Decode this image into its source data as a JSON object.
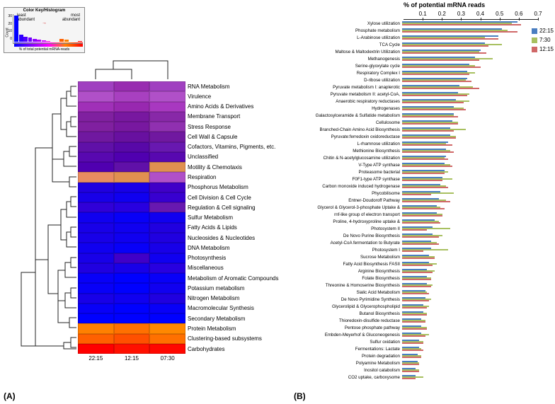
{
  "panelA": {
    "tag": "(A)",
    "inset": {
      "title": "Color Key/Histogram",
      "ylabel": "Count",
      "xlabel": "% of total potential mRNA-reads",
      "label_least": "least\nabundant",
      "label_most": "most\nabundant",
      "yticks": [
        "0",
        "10",
        "20",
        "30"
      ],
      "bars": [
        {
          "h": 100,
          "c": "#0000ff"
        },
        {
          "h": 28,
          "c": "#3000ff"
        },
        {
          "h": 20,
          "c": "#5000ff"
        },
        {
          "h": 15,
          "c": "#7000ff"
        },
        {
          "h": 10,
          "c": "#9000ff"
        },
        {
          "h": 7,
          "c": "#b000ff"
        },
        {
          "h": 5,
          "c": "#d000ff"
        },
        {
          "h": 3,
          "c": "#ff00e0"
        },
        {
          "h": 0,
          "c": "#ff00a0"
        },
        {
          "h": 0,
          "c": "#ff0060"
        },
        {
          "h": 12,
          "c": "#ff6000"
        },
        {
          "h": 8,
          "c": "#ff8000"
        },
        {
          "h": 0,
          "c": "#ffa000"
        },
        {
          "h": 0,
          "c": "#ffc000"
        },
        {
          "h": 4,
          "c": "#ff0000"
        }
      ],
      "gradient": [
        "#0000ff",
        "#8000ff",
        "#ff00ff",
        "#ff8000",
        "#ff0000"
      ]
    },
    "xlabels": [
      "22:15",
      "12:15",
      "07:30"
    ],
    "rows": [
      {
        "label": "RNA Metabolism",
        "cells": [
          "#a040c0",
          "#982db0",
          "#a040c0"
        ]
      },
      {
        "label": "Virulence",
        "cells": [
          "#b050c8",
          "#a840c0",
          "#b050c8"
        ]
      },
      {
        "label": "Amino Acids & Derivatives",
        "cells": [
          "#a030b8",
          "#9828b0",
          "#a838c0"
        ]
      },
      {
        "label": "Membrane Transport",
        "cells": [
          "#8020a0",
          "#7818a0",
          "#8828a8"
        ]
      },
      {
        "label": "Stress Response",
        "cells": [
          "#8020a0",
          "#7818a0",
          "#9030b0"
        ]
      },
      {
        "label": "Cell Wall & Capsule",
        "cells": [
          "#7018a0",
          "#6810a0",
          "#7018a0"
        ]
      },
      {
        "label": "Cofactors, Vitamins, Pigments, etc.",
        "cells": [
          "#6010a8",
          "#5808a8",
          "#6818b0"
        ]
      },
      {
        "label": "Unclassified",
        "cells": [
          "#5808b0",
          "#5000b0",
          "#5808b0"
        ]
      },
      {
        "label": "Motility & Chemotaxis",
        "cells": [
          "#5000b0",
          "#6010a8",
          "#e09050"
        ]
      },
      {
        "label": "Respiration",
        "cells": [
          "#e88c60",
          "#e09050",
          "#b050c8"
        ]
      },
      {
        "label": "Phosphorus Metabolism",
        "cells": [
          "#2000e0",
          "#1800e8",
          "#4000c8"
        ]
      },
      {
        "label": "Cell Division & Cell Cycle",
        "cells": [
          "#1800e8",
          "#1000f0",
          "#3800d0"
        ]
      },
      {
        "label": "Regulation & Cell signaling",
        "cells": [
          "#3000d8",
          "#2800e0",
          "#6818b0"
        ]
      },
      {
        "label": "Sulfur Metabolism",
        "cells": [
          "#1000f0",
          "#0800f8",
          "#1000f0"
        ]
      },
      {
        "label": "Fatty Acids & Lipids",
        "cells": [
          "#1800e8",
          "#1000f0",
          "#2000e0"
        ]
      },
      {
        "label": "Nucleosides & Nucleotides",
        "cells": [
          "#1800e8",
          "#1000f0",
          "#2000e0"
        ]
      },
      {
        "label": "DNA Metabolism",
        "cells": [
          "#1000f0",
          "#0800f8",
          "#1800e8"
        ]
      },
      {
        "label": "Photosynthesis",
        "cells": [
          "#1800e8",
          "#4000c8",
          "#1000f0"
        ]
      },
      {
        "label": "Miscellaneous",
        "cells": [
          "#2000e0",
          "#1800e8",
          "#2800e0"
        ]
      },
      {
        "label": "Metabolism of Aromatic Compounds",
        "cells": [
          "#0800f8",
          "#0000ff",
          "#0800f8"
        ]
      },
      {
        "label": "Potassium metabolism",
        "cells": [
          "#0800f8",
          "#0000ff",
          "#1000f0"
        ]
      },
      {
        "label": "Nitrogen Metabolism",
        "cells": [
          "#1800e8",
          "#1000f0",
          "#2000e0"
        ]
      },
      {
        "label": "Macromolecular Synthesis",
        "cells": [
          "#0800f8",
          "#0000ff",
          "#0800f8"
        ]
      },
      {
        "label": "Secondary Metabolism",
        "cells": [
          "#0000ff",
          "#0000ff",
          "#0000ff"
        ]
      },
      {
        "label": "Protein Metabolism",
        "cells": [
          "#ff8000",
          "#ff7000",
          "#ff8800"
        ]
      },
      {
        "label": "Clustering-based subsystems",
        "cells": [
          "#ff6000",
          "#ff5000",
          "#ff7000"
        ]
      },
      {
        "label": "Carbohydrates",
        "cells": [
          "#ff0000",
          "#ff1000",
          "#ff0800"
        ]
      }
    ]
  },
  "panelB": {
    "tag": "(B)",
    "title": "% of potential mRNA reads",
    "xticks": [
      0.1,
      0.2,
      0.3,
      0.4,
      0.5,
      0.6,
      0.7
    ],
    "xmax": 0.7,
    "legend": [
      {
        "label": "22:15",
        "color": "#4a7ec0"
      },
      {
        "label": "7:30",
        "color": "#a8c060"
      },
      {
        "label": "12:15",
        "color": "#d06868"
      }
    ],
    "series_colors": [
      "#4a7ec0",
      "#a8c060",
      "#d06868"
    ],
    "rows": [
      {
        "label": "Xylose utilization",
        "v": [
          0.6,
          0.57,
          0.62
        ]
      },
      {
        "label": "Phosphate metabolism",
        "v": [
          0.52,
          0.55,
          0.6
        ]
      },
      {
        "label": "L-Arabinose utilization",
        "v": [
          0.5,
          0.43,
          0.5
        ]
      },
      {
        "label": "TCA Cycle",
        "v": [
          0.43,
          0.52,
          0.45
        ]
      },
      {
        "label": "Maltose & Maltodextrin Utilization",
        "v": [
          0.41,
          0.4,
          0.44
        ]
      },
      {
        "label": "Methanogenesis",
        "v": [
          0.38,
          0.47,
          0.4
        ]
      },
      {
        "label": "Serine-glyoxylate cycle",
        "v": [
          0.35,
          0.38,
          0.41
        ]
      },
      {
        "label": "Respiratory Complex I",
        "v": [
          0.34,
          0.38,
          0.35
        ]
      },
      {
        "label": "D-ribose utilization",
        "v": [
          0.34,
          0.33,
          0.36
        ]
      },
      {
        "label": "Pyruvate metabolism I: anaplerotic",
        "v": [
          0.3,
          0.37,
          0.4
        ]
      },
      {
        "label": "Pyruvate metabolism II: acetyl-CoA,",
        "v": [
          0.29,
          0.35,
          0.34
        ]
      },
      {
        "label": "Anaerobic respiratory reductases",
        "v": [
          0.28,
          0.35,
          0.32
        ]
      },
      {
        "label": "Hydrogenases",
        "v": [
          0.27,
          0.32,
          0.33
        ]
      },
      {
        "label": "Galactosylceramide & Sulfatide metabolism",
        "v": [
          0.27,
          0.27,
          0.29
        ]
      },
      {
        "label": "Cellulosome",
        "v": [
          0.26,
          0.29,
          0.29
        ]
      },
      {
        "label": "Branched-Chain Amino Acid Biosynthesis",
        "v": [
          0.25,
          0.33,
          0.27
        ]
      },
      {
        "label": "Pyruvate:ferredoxin oxidoreductase",
        "v": [
          0.25,
          0.28,
          0.28
        ]
      },
      {
        "label": "L-rhamnose utilization",
        "v": [
          0.24,
          0.23,
          0.26
        ]
      },
      {
        "label": "Methionine Biosynthesis",
        "v": [
          0.23,
          0.25,
          0.27
        ]
      },
      {
        "label": "Chitin & N-acetylglucosamine utilization",
        "v": [
          0.23,
          0.22,
          0.24
        ]
      },
      {
        "label": "V-Type ATP synthase",
        "v": [
          0.22,
          0.25,
          0.26
        ]
      },
      {
        "label": "Proteasome bacterial",
        "v": [
          0.22,
          0.24,
          0.22
        ]
      },
      {
        "label": "F0F1-type ATP synthase",
        "v": [
          0.21,
          0.26,
          0.21
        ]
      },
      {
        "label": "Carbon monoxide induced hydrogenase",
        "v": [
          0.2,
          0.23,
          0.24
        ]
      },
      {
        "label": "Phycobilisome",
        "v": [
          0.2,
          0.27,
          0.15
        ]
      },
      {
        "label": "Entner-Doudoroff Pathway",
        "v": [
          0.19,
          0.23,
          0.25
        ]
      },
      {
        "label": "Glycerol & Glycerol-3-phosphate Uptake &",
        "v": [
          0.18,
          0.2,
          0.22
        ]
      },
      {
        "label": "rnf-like group of electron transport",
        "v": [
          0.18,
          0.21,
          0.21
        ]
      },
      {
        "label": "Proline, 4-hydroxyproline uptake &",
        "v": [
          0.17,
          0.19,
          0.2
        ]
      },
      {
        "label": "Photosystem II",
        "v": [
          0.16,
          0.25,
          0.13
        ]
      },
      {
        "label": "De Novo Purine Biosynthesis",
        "v": [
          0.16,
          0.21,
          0.19
        ]
      },
      {
        "label": "Acetyl-CoA fermentation to Butyrate",
        "v": [
          0.15,
          0.18,
          0.19
        ]
      },
      {
        "label": "Photosystem I",
        "v": [
          0.15,
          0.24,
          0.11
        ]
      },
      {
        "label": "Sucrose Metabolism",
        "v": [
          0.14,
          0.17,
          0.17
        ]
      },
      {
        "label": "Fatty Acid Biosynthesis FASII",
        "v": [
          0.14,
          0.18,
          0.16
        ]
      },
      {
        "label": "Arginine Biosynthesis",
        "v": [
          0.13,
          0.17,
          0.16
        ]
      },
      {
        "label": "Folate Biosynthesis",
        "v": [
          0.13,
          0.15,
          0.15
        ]
      },
      {
        "label": "Threonine & Homoserine Biosynthesis",
        "v": [
          0.13,
          0.16,
          0.15
        ]
      },
      {
        "label": "Sialic Acid Metabolism",
        "v": [
          0.12,
          0.13,
          0.14
        ]
      },
      {
        "label": "De Novo Pyrimidine Synthesis",
        "v": [
          0.12,
          0.15,
          0.14
        ]
      },
      {
        "label": "Glycerolipid & Glycerophospholipid",
        "v": [
          0.11,
          0.14,
          0.13
        ]
      },
      {
        "label": "Butanol Biosynthesis",
        "v": [
          0.11,
          0.13,
          0.13
        ]
      },
      {
        "label": "Thioredoxin-disulfide reductase",
        "v": [
          0.1,
          0.12,
          0.12
        ]
      },
      {
        "label": "Pentose phosphate pathway",
        "v": [
          0.1,
          0.13,
          0.13
        ]
      },
      {
        "label": "Embden-Meyerhof & Gluconeogenesis",
        "v": [
          0.1,
          0.14,
          0.12
        ]
      },
      {
        "label": "Sulfur oxidation",
        "v": [
          0.09,
          0.11,
          0.11
        ]
      },
      {
        "label": "Fermentations: Lactate",
        "v": [
          0.09,
          0.1,
          0.11
        ]
      },
      {
        "label": "Protein degradation",
        "v": [
          0.08,
          0.1,
          0.1
        ]
      },
      {
        "label": "Polyamine Metabolism",
        "v": [
          0.08,
          0.09,
          0.09
        ]
      },
      {
        "label": "Inositol catabolism",
        "v": [
          0.07,
          0.09,
          0.09
        ]
      },
      {
        "label": "CO2 uptake, carboxysome",
        "v": [
          0.07,
          0.11,
          0.07
        ]
      }
    ]
  }
}
